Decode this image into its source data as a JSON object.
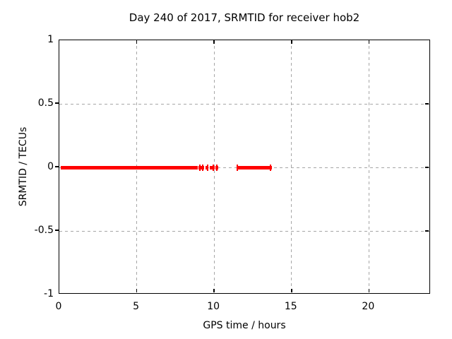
{
  "chart_data": {
    "type": "scatter",
    "title": "Day 240 of 2017, SRMTID for receiver hob2",
    "xlabel": "GPS time / hours",
    "ylabel": "SRMTID / TECUs",
    "xlim": [
      0,
      24
    ],
    "ylim": [
      -1,
      1
    ],
    "xticks": [
      {
        "value": 0,
        "label": "0"
      },
      {
        "value": 5,
        "label": "5"
      },
      {
        "value": 10,
        "label": "10"
      },
      {
        "value": 15,
        "label": "15"
      },
      {
        "value": 20,
        "label": "20"
      }
    ],
    "yticks": [
      {
        "value": 1,
        "label": "1"
      },
      {
        "value": 0.5,
        "label": "0.5"
      },
      {
        "value": 0,
        "label": "0"
      },
      {
        "value": -0.5,
        "label": "-0.5"
      },
      {
        "value": -1,
        "label": "-1"
      }
    ],
    "grid": {
      "on": true,
      "style": "dashed",
      "color": "#a6a6a6",
      "x_values": [
        5,
        10,
        15,
        20
      ],
      "y_values": [
        -0.5,
        0,
        0.5
      ]
    },
    "legend": "none",
    "series": [
      {
        "name": "SRMTID",
        "color": "#ff0000",
        "marker": "plus",
        "y_value": 0,
        "segments_hours": [
          [
            0.1,
            8.93
          ],
          [
            8.99,
            9.35
          ],
          [
            9.45,
            9.63
          ],
          [
            9.72,
            10.05
          ],
          [
            10.1,
            10.25
          ],
          [
            11.45,
            13.75
          ]
        ],
        "plus_marker_hours": [
          9.08,
          9.28,
          9.57,
          9.95,
          10.17,
          11.5,
          13.62
        ]
      }
    ]
  }
}
